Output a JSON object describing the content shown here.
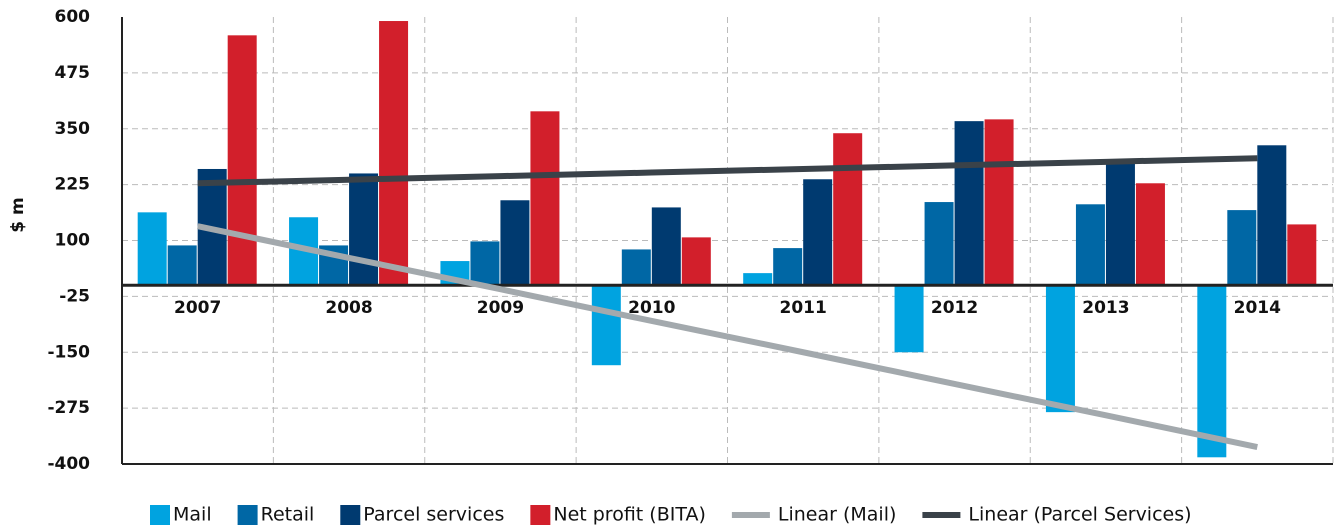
{
  "chart_data": {
    "type": "bar",
    "y_label": "$ m",
    "categories": [
      "2007",
      "2008",
      "2009",
      "2010",
      "2011",
      "2012",
      "2013",
      "2014"
    ],
    "series": [
      {
        "name": "Mail",
        "color": "#00a3e0",
        "values": [
          163,
          152,
          54,
          -179,
          27,
          -150,
          -284,
          -385
        ]
      },
      {
        "name": "Retail",
        "color": "#0067a5",
        "values": [
          89,
          89,
          98,
          80,
          83,
          186,
          181,
          168
        ]
      },
      {
        "name": "Parcel services",
        "color": "#003a70",
        "values": [
          260,
          250,
          190,
          174,
          237,
          367,
          282,
          313
        ]
      },
      {
        "name": "Net profit (BITA)",
        "color": "#d21f2b",
        "values": [
          559,
          591,
          389,
          107,
          340,
          371,
          228,
          136
        ]
      },
      {
        "name": "Linear (Mail)",
        "type": "line",
        "color": "#a3a9ad",
        "values": [
          132,
          61,
          -9,
          -80,
          -150,
          -221,
          -291,
          -362
        ]
      },
      {
        "name": "Linear (Parcel Services)",
        "type": "line",
        "color": "#3a4249",
        "values": [
          228,
          236,
          244,
          252,
          260,
          268,
          276,
          284
        ]
      }
    ],
    "ylim": [
      -400,
      600
    ],
    "yticks": [
      600,
      475,
      350,
      225,
      100,
      -25,
      -150,
      -275,
      -400
    ],
    "grid": true
  }
}
